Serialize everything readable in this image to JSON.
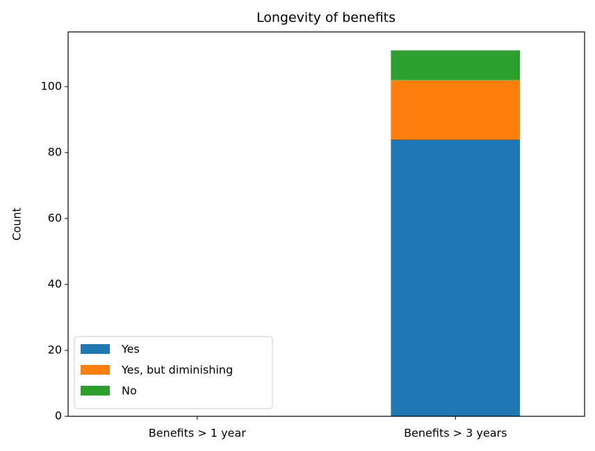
{
  "chart_data": {
    "type": "stacked_bar",
    "title": "Longevity of benefits",
    "ylabel": "Count",
    "categories": [
      "Benefits > 1 year",
      "Benefits > 3 years"
    ],
    "series": [
      {
        "name": "Yes",
        "color": "#1f77b4",
        "values": [
          0,
          84
        ]
      },
      {
        "name": "Yes, but diminishing",
        "color": "#ff7f0e",
        "values": [
          0,
          18
        ]
      },
      {
        "name": "No",
        "color": "#2ca02c",
        "values": [
          0,
          9
        ]
      }
    ],
    "ylim": [
      0,
      116.6
    ],
    "yticks": [
      0,
      20,
      40,
      60,
      80,
      100
    ],
    "grid": false,
    "legend": "lower left"
  }
}
